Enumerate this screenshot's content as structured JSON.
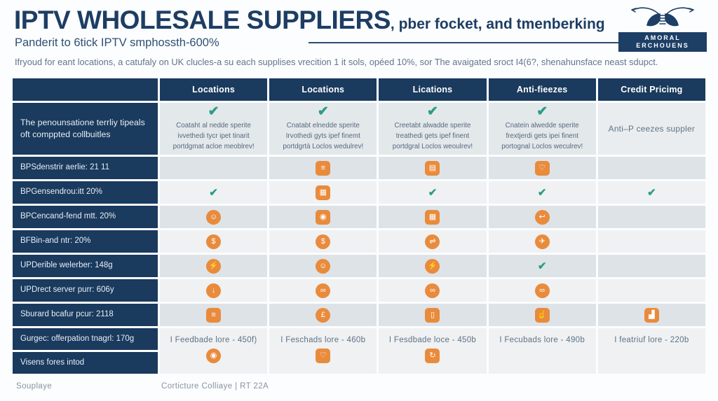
{
  "colors": {
    "navy": "#1a3a5e",
    "orange": "#e98b3c",
    "check_green": "#2d9c86",
    "title_navy": "#1d3d63"
  },
  "header": {
    "title": "IPTV WHOLESALE SUPPLIERS",
    "title_suffix": ", pber focket, and tmenberking",
    "subtitle": "Panderit to 6tick IPTV smphossth-600%",
    "description": "Ifryoud for eant locations, a catufaly on UK clucles-a su each supplises vrecition 1 it sols, opéed 10%, sor The avaigated sroct I4(6?, shenahunsface neast sdupct.",
    "logo_text": "AMORAL ERCHOUENS"
  },
  "table": {
    "column_headers": [
      "Locations",
      "Locations",
      "Lications",
      "Anti-fieezes",
      "Credit Pricimg"
    ],
    "rows": [
      {
        "label": "The penounsatione terrliy tipeals oft comppted collbuitles",
        "cells": [
          {
            "type": "checktext",
            "text": "Coataht al nedde sperite ivvethedi tycr ipet tinarit portdgmat acloe meoblrev!"
          },
          {
            "type": "checktext",
            "text": "Cnatabt elnedde sperite Irvothedi gyts ipef finemt portdgrtà Loclos wedulrev!"
          },
          {
            "type": "checktext",
            "text": "Creetabt alwadde sperite treathedi gets ipef finent portdgral Loclos weoulrev!"
          },
          {
            "type": "checktext",
            "text": "Cnatein alwedde sperite frextjerdi gets ipei finent portognal Loclos weculrev!"
          },
          {
            "type": "textonly",
            "text": "Anti–P ceezes suppler"
          }
        ]
      },
      {
        "label": "BPSdenstrir aerlie: 21 11",
        "cells": [
          {
            "type": "empty"
          },
          {
            "type": "icon",
            "shape": "square",
            "name": "document-icon",
            "glyph": "≡"
          },
          {
            "type": "icon",
            "shape": "square",
            "name": "clipboard-icon",
            "glyph": "▤"
          },
          {
            "type": "icon",
            "shape": "square",
            "name": "chat-icon",
            "glyph": "♡"
          },
          {
            "type": "empty"
          }
        ]
      },
      {
        "label": "BPGensendrou:itt 20%",
        "cells": [
          {
            "type": "check"
          },
          {
            "type": "icon",
            "shape": "square",
            "name": "calendar-icon",
            "glyph": "▦"
          },
          {
            "type": "check"
          },
          {
            "type": "check"
          },
          {
            "type": "check"
          }
        ]
      },
      {
        "label": "BPCencand-fend mtt. 20%",
        "cells": [
          {
            "type": "icon",
            "shape": "circle",
            "name": "person-icon",
            "glyph": "☺"
          },
          {
            "type": "icon",
            "shape": "square",
            "name": "camera-icon",
            "glyph": "◉"
          },
          {
            "type": "icon",
            "shape": "square",
            "name": "calendar-icon",
            "glyph": "▦"
          },
          {
            "type": "icon",
            "shape": "circle",
            "name": "reply-arrow-icon",
            "glyph": "↩"
          },
          {
            "type": "empty"
          }
        ]
      },
      {
        "label": "BFBin-and ntr: 20%",
        "cells": [
          {
            "type": "icon",
            "shape": "circle",
            "name": "dollar-icon",
            "glyph": "$"
          },
          {
            "type": "icon",
            "shape": "circle",
            "name": "dollar-icon",
            "glyph": "$"
          },
          {
            "type": "icon",
            "shape": "circle",
            "name": "scale-icon",
            "glyph": "⇌"
          },
          {
            "type": "icon",
            "shape": "circle",
            "name": "send-icon",
            "glyph": "✈"
          },
          {
            "type": "empty"
          }
        ]
      },
      {
        "label": "UPDerible welerber: 148g",
        "cells": [
          {
            "type": "icon",
            "shape": "circle",
            "name": "runner-icon",
            "glyph": "⚡"
          },
          {
            "type": "icon",
            "shape": "circle",
            "name": "person-icon",
            "glyph": "☺"
          },
          {
            "type": "icon",
            "shape": "circle",
            "name": "runner-icon",
            "glyph": "⚡"
          },
          {
            "type": "check"
          },
          {
            "type": "empty"
          }
        ]
      },
      {
        "label": "UPDrect server purr: 606y",
        "cells": [
          {
            "type": "icon",
            "shape": "circle",
            "name": "download-icon",
            "glyph": "↓"
          },
          {
            "type": "icon",
            "shape": "circle",
            "name": "car-icon",
            "glyph": "∞"
          },
          {
            "type": "icon",
            "shape": "circle",
            "name": "car-icon",
            "glyph": "∞"
          },
          {
            "type": "icon",
            "shape": "circle",
            "name": "car-icon",
            "glyph": "∞"
          },
          {
            "type": "empty"
          }
        ]
      },
      {
        "label": "Sburard bcafur pcur: 2118",
        "cells": [
          {
            "type": "icon",
            "shape": "square",
            "name": "document-icon",
            "glyph": "≡"
          },
          {
            "type": "icon",
            "shape": "circle",
            "name": "pound-icon",
            "glyph": "£"
          },
          {
            "type": "icon",
            "shape": "square",
            "name": "battery-icon",
            "glyph": "▯"
          },
          {
            "type": "icon",
            "shape": "square",
            "name": "thumbs-up-icon",
            "glyph": "☝"
          },
          {
            "type": "icon",
            "shape": "square",
            "name": "bar-chart-icon",
            "glyph": "▟"
          }
        ]
      }
    ],
    "bottom": {
      "labels": [
        "Gurgec: offerpation tnagrl: 170g",
        "Visens fores intod"
      ],
      "cells": [
        {
          "text": "I Feedbade lore - 450f)",
          "icon": {
            "shape": "circle",
            "name": "location-pin-icon",
            "glyph": "◉"
          }
        },
        {
          "text": "I Feschads lore - 460b",
          "icon": {
            "shape": "square",
            "name": "chat-icon",
            "glyph": "♡"
          }
        },
        {
          "text": "I Fesdbade loce - 450b",
          "icon": {
            "shape": "square",
            "name": "refresh-icon",
            "glyph": "↻"
          }
        },
        {
          "text": "I Fecubads lore - 490b",
          "icon": null
        },
        {
          "text": "I featriuf lore - 220b",
          "icon": null
        }
      ]
    }
  },
  "footer": {
    "left": "Souplaye",
    "center": "Corticture Colliaye | RT 22A"
  }
}
